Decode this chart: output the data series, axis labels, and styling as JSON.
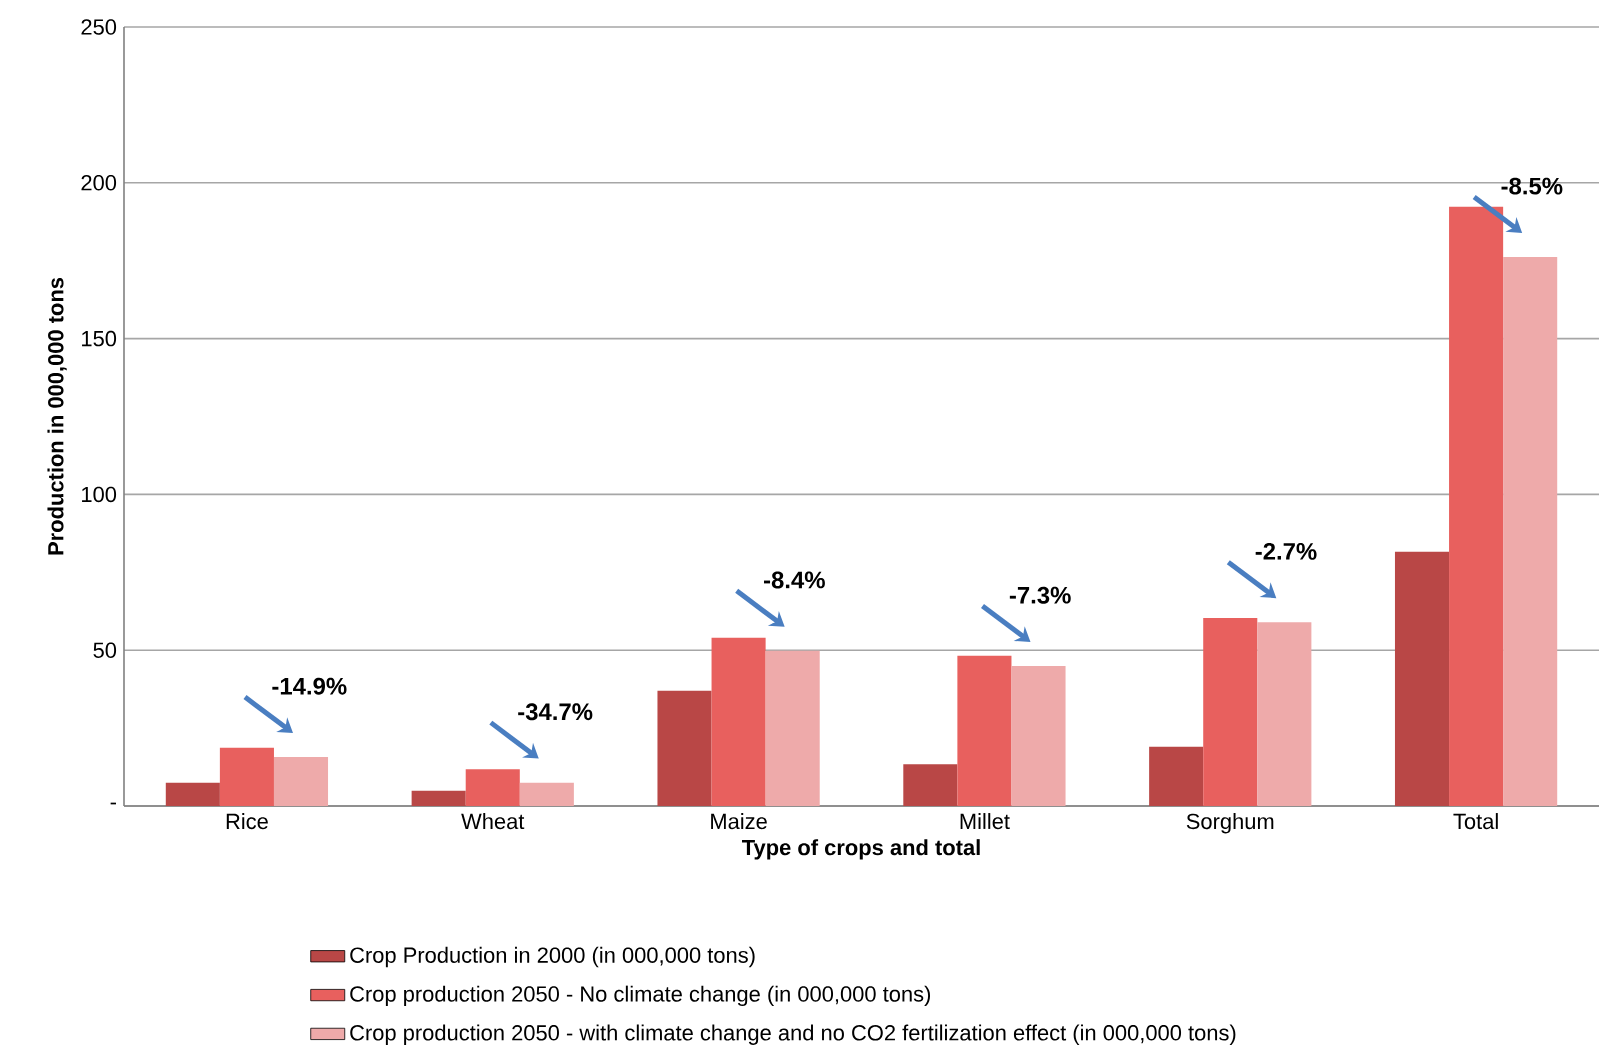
{
  "chart_data": {
    "type": "bar",
    "categories": [
      "Rice",
      "Wheat",
      "Maize",
      "Millet",
      "Sorghum",
      "Total"
    ],
    "series": [
      {
        "name": "Crop Production in 2000 (in 000,000 tons)",
        "color": "#b94746",
        "values": [
          7.5,
          4.9,
          37,
          13.4,
          19,
          81.6
        ]
      },
      {
        "name": "Crop production 2050 - No climate change (in 000,000 tons)",
        "color": "#e8605e",
        "values": [
          18.7,
          11.8,
          54,
          48.2,
          60.3,
          192.3
        ]
      },
      {
        "name": "Crop production 2050 - with climate change and no CO2 fertilization effect (in 000,000 tons)",
        "color": "#eeaaaa",
        "values": [
          15.7,
          7.5,
          49.8,
          44.9,
          59,
          176.2
        ]
      }
    ],
    "xlabel": "Type of crops and total",
    "ylabel": "Production in 000,000 tons",
    "ylim": [
      0,
      250
    ],
    "yticks": [
      {
        "value": 0,
        "label": "-"
      },
      50,
      100,
      150,
      200,
      250
    ],
    "grid": "y",
    "legend": "bottom",
    "annotations": [
      "-14.9%",
      "-34.7%",
      "-8.4%",
      "-7.3%",
      "-2.7%",
      "-8.5%"
    ]
  }
}
